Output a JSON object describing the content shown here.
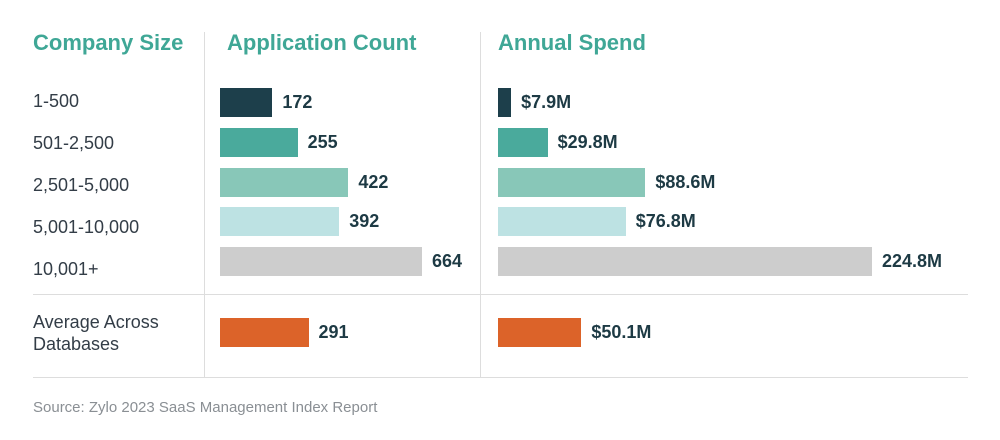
{
  "headers": {
    "size": "Company Size",
    "count": "Application Count",
    "spend": "Annual Spend"
  },
  "chart_data": {
    "type": "bar",
    "categories": [
      "1-500",
      "501-2,500",
      "2,501-5,000",
      "5,001-10,000",
      "10,001+",
      "Average Across Databases"
    ],
    "series": [
      {
        "name": "Application Count",
        "values": [
          172,
          255,
          422,
          392,
          664,
          291
        ],
        "labels": [
          "172",
          "255",
          "422",
          "392",
          "664",
          "291"
        ]
      },
      {
        "name": "Annual Spend",
        "values": [
          7.9,
          29.8,
          88.6,
          76.8,
          224.8,
          50.1
        ],
        "labels": [
          "$7.9M",
          "$29.8M",
          "$88.6M",
          "$76.8M",
          "224.8M",
          "$50.1M"
        ]
      }
    ],
    "colors": [
      "#1d3f4b",
      "#4aaa9c",
      "#88c7b8",
      "#bde2e3",
      "#cdcdcd",
      "#dc6329"
    ]
  },
  "source": "Source: Zylo 2023 SaaS Management Index Report"
}
